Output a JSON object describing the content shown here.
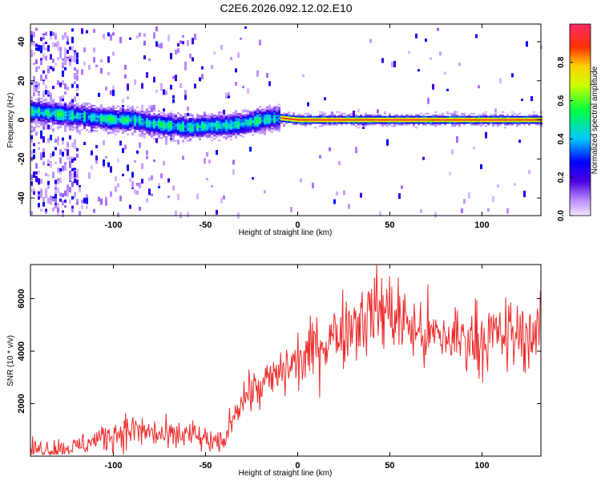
{
  "title": "C2E6.2026.092.12.02.E10",
  "chart_data": [
    {
      "type": "heatmap",
      "xlabel": "Height of straight line (km)",
      "ylabel": "Frequency (Hz)",
      "xlim": [
        -145,
        132
      ],
      "ylim": [
        -49,
        49
      ],
      "xticks": [
        -100,
        -50,
        0,
        50,
        100
      ],
      "yticks": [
        -40,
        -20,
        0,
        20,
        40
      ],
      "ridge": [
        [
          -120,
          2
        ],
        [
          -110,
          1
        ],
        [
          -100,
          0
        ],
        [
          -90,
          0
        ],
        [
          -80,
          -2
        ],
        [
          -70,
          -3
        ],
        [
          -60,
          -4
        ],
        [
          -50,
          -3
        ],
        [
          -40,
          -3
        ],
        [
          -30,
          -2
        ],
        [
          -20,
          0
        ],
        [
          -10,
          1
        ],
        [
          0,
          0
        ],
        [
          50,
          0
        ],
        [
          130,
          0
        ]
      ],
      "colorbar": {
        "label": "Normalized spectral amplitude",
        "range": [
          0,
          1
        ],
        "ticks": [
          "0.0",
          "0.2",
          "0.4",
          "0.6",
          "0.8"
        ]
      }
    },
    {
      "type": "line",
      "xlabel": "Height of straight line (km)",
      "ylabel": "SNR (10 * v/v)",
      "xlim": [
        -145,
        132
      ],
      "ylim": [
        0,
        7300
      ],
      "xticks": [
        -100,
        -50,
        0,
        50,
        100
      ],
      "yticks": [
        2000,
        4000,
        6000
      ],
      "series": [
        {
          "name": "SNR",
          "color": "#ee2a2a",
          "x": [
            -145,
            -130,
            -120,
            -110,
            -100,
            -90,
            -80,
            -70,
            -60,
            -50,
            -45,
            -40,
            -35,
            -30,
            -25,
            -20,
            -15,
            -10,
            -5,
            0,
            5,
            10,
            15,
            20,
            25,
            30,
            35,
            40,
            45,
            50,
            55,
            60,
            65,
            70,
            80,
            90,
            100,
            110,
            120,
            132
          ],
          "y": [
            250,
            300,
            350,
            600,
            850,
            1000,
            900,
            700,
            850,
            600,
            450,
            500,
            1600,
            2200,
            2500,
            2600,
            2900,
            3100,
            3400,
            3600,
            3800,
            4200,
            4400,
            4600,
            4900,
            5100,
            5300,
            5500,
            5600,
            5500,
            5300,
            5000,
            4700,
            4600,
            4500,
            4500,
            4500,
            4600,
            4600,
            4700
          ]
        }
      ]
    }
  ]
}
